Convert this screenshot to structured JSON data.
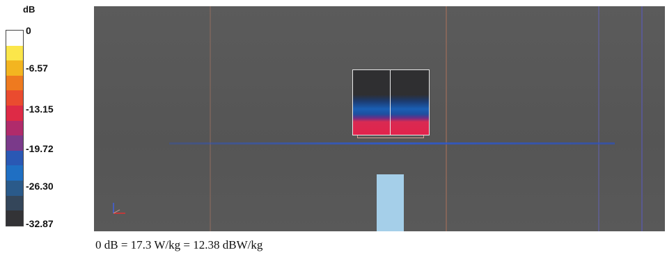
{
  "legend": {
    "unit": "dB",
    "ticks": [
      "0",
      "-6.57",
      "-13.15",
      "-19.72",
      "-26.30",
      "-32.87"
    ],
    "colors": [
      "#fefefe",
      "#fbe64a",
      "#f3b520",
      "#ee7a1f",
      "#ea4b2f",
      "#de2a46",
      "#b02b6b",
      "#7a3a8a",
      "#2a58b4",
      "#1f6fc3",
      "#2a5a8a",
      "#34465a",
      "#333336"
    ]
  },
  "viewport": {
    "background": "#575757",
    "vertical_lines": [
      {
        "color": "#8c6a5e"
      },
      {
        "color": "#9a6a5a"
      },
      {
        "color": "#6a6ab2"
      },
      {
        "color": "#6060c0"
      }
    ],
    "horizontal_line_color": "#2f5ad0",
    "phantom_box": {
      "icon": "phantom-box",
      "sar_colors": [
        "#2f2f31",
        "#1a5fb4",
        "#e2234c"
      ]
    },
    "antenna": {
      "color": "#a5cfe9"
    },
    "axis_triad": {
      "colors": [
        "#e03030",
        "#3050e0"
      ]
    }
  },
  "caption": "0 dB = 17.3 W/kg = 12.38 dBW/kg"
}
